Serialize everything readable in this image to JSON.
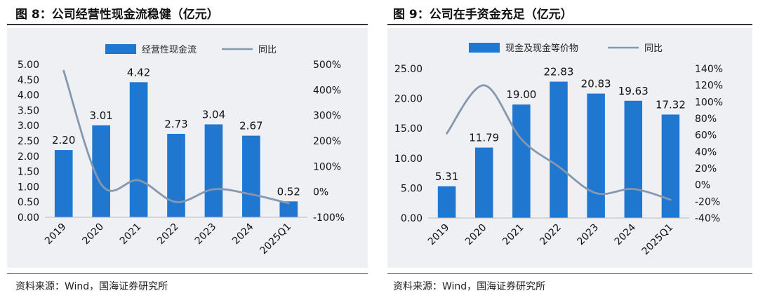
{
  "left": {
    "title": "图 8：公司经营性现金流稳健（亿元）",
    "source": "资料来源：Wind，国海证券研究所"
  },
  "right": {
    "title": "图 9：公司在手资金充足（亿元）",
    "source": "资料来源：Wind，国海证券研究所"
  },
  "colors": {
    "bar": "#1f77d0",
    "line": "#8797ad",
    "panel_bg": "#eef0f3"
  },
  "chart_data": [
    {
      "type": "bar",
      "categories": [
        "2019",
        "2020",
        "2021",
        "2022",
        "2023",
        "2024",
        "2025Q1"
      ],
      "series": [
        {
          "name": "经营性现金流",
          "type": "bar",
          "axis": "left",
          "values": [
            2.2,
            3.01,
            4.42,
            2.73,
            3.04,
            2.67,
            0.52
          ],
          "labels": [
            "2.20",
            "3.01",
            "4.42",
            "2.73",
            "3.04",
            "2.67",
            "0.52"
          ]
        },
        {
          "name": "同比",
          "type": "line",
          "axis": "right",
          "values": [
            475,
            30,
            45,
            -40,
            10,
            -10,
            -45
          ]
        }
      ],
      "y_left": {
        "ylim": [
          0,
          5
        ],
        "ticks": [
          "0.00",
          "0.50",
          "1.00",
          "1.50",
          "2.00",
          "2.50",
          "3.00",
          "3.50",
          "4.00",
          "4.50",
          "5.00"
        ]
      },
      "y_right": {
        "ylim": [
          -100,
          500
        ],
        "ticks": [
          "-100%",
          "0%",
          "100%",
          "200%",
          "300%",
          "400%",
          "500%"
        ]
      },
      "legend": "top-center"
    },
    {
      "type": "bar",
      "categories": [
        "2019",
        "2020",
        "2021",
        "2022",
        "2023",
        "2024",
        "2025Q1"
      ],
      "series": [
        {
          "name": "现金及现金等价物",
          "type": "bar",
          "axis": "left",
          "values": [
            5.31,
            11.79,
            19.0,
            22.83,
            20.83,
            19.63,
            17.32
          ],
          "labels": [
            "5.31",
            "11.79",
            "19.00",
            "22.83",
            "20.83",
            "19.63",
            "17.32"
          ]
        },
        {
          "name": "同比",
          "type": "line",
          "axis": "right",
          "values": [
            62,
            120,
            55,
            22,
            -10,
            -5,
            -18
          ]
        }
      ],
      "y_left": {
        "ylim": [
          0,
          25
        ],
        "ticks": [
          "0.00",
          "5.00",
          "10.00",
          "15.00",
          "20.00",
          "25.00"
        ]
      },
      "y_right": {
        "ylim": [
          -40,
          140
        ],
        "ticks": [
          "-40%",
          "-20%",
          "0%",
          "20%",
          "40%",
          "60%",
          "80%",
          "100%",
          "120%",
          "140%"
        ]
      },
      "legend": "top-center"
    }
  ]
}
